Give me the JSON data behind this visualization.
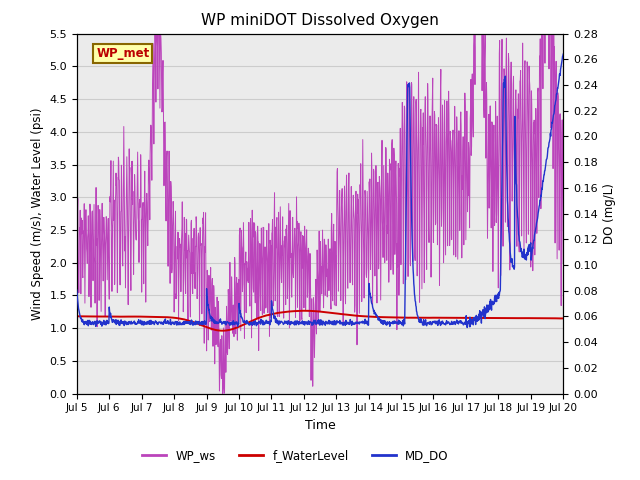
{
  "title": "WP miniDOT Dissolved Oxygen",
  "xlabel": "Time",
  "ylabel_left": "Wind Speed (m/s), Water Level (psi)",
  "ylabel_right": "DO (mg/L)",
  "ylim_left": [
    0.0,
    5.5
  ],
  "ylim_right": [
    0.0,
    0.28
  ],
  "yticks_left": [
    0.0,
    0.5,
    1.0,
    1.5,
    2.0,
    2.5,
    3.0,
    3.5,
    4.0,
    4.5,
    5.0,
    5.5
  ],
  "yticks_right": [
    0.0,
    0.02,
    0.04,
    0.06,
    0.08,
    0.1,
    0.12,
    0.14,
    0.16,
    0.18,
    0.2,
    0.22,
    0.24,
    0.26,
    0.28
  ],
  "xtick_labels": [
    "Jul 5",
    "Jul 6",
    "Jul 7",
    "Jul 8",
    "Jul 9",
    "Jul 10",
    "Jul 11",
    "Jul 12",
    "Jul 13",
    "Jul 14",
    "Jul 15",
    "Jul 16",
    "Jul 17",
    "Jul 18",
    "Jul 19",
    "Jul 20"
  ],
  "color_ws": "#BB44BB",
  "color_wl": "#CC0000",
  "color_do": "#2233CC",
  "legend_box_facecolor": "#FFFFAA",
  "legend_box_edgecolor": "#886600",
  "legend_box_textcolor": "#BB0000",
  "legend_box_label": "WP_met",
  "grid_color": "#CCCCCC",
  "bg_color": "#EBEBEB",
  "linewidth_ws": 0.7,
  "linewidth_wl": 1.4,
  "linewidth_do": 1.0
}
